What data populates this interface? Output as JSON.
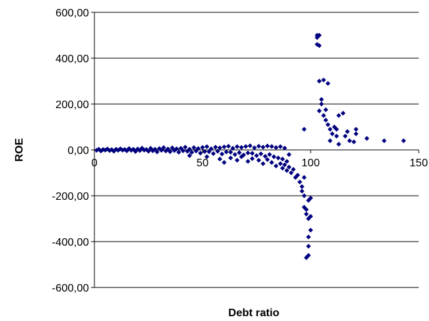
{
  "chart_data": {
    "type": "scatter",
    "title": "",
    "xlabel": "Debt ratio",
    "ylabel": "ROE",
    "xlim": [
      0,
      150
    ],
    "ylim": [
      -600,
      600
    ],
    "x_ticks": [
      0,
      50,
      100,
      150
    ],
    "x_tick_labels": [
      "0",
      "50",
      "100",
      "150"
    ],
    "y_ticks": [
      600,
      400,
      200,
      0,
      -200,
      -400,
      -600
    ],
    "y_tick_labels": [
      "600,00",
      "400,00",
      "200,00",
      "0,00",
      "-200,00",
      "-400,00",
      "-600,00"
    ],
    "grid": "horizontal",
    "marker": "diamond",
    "colors": {
      "marker": "#00007f",
      "axis": "#000000",
      "grid": "#000000"
    },
    "series": [
      {
        "points": [
          [
            1,
            -2
          ],
          [
            2,
            3
          ],
          [
            3,
            -5
          ],
          [
            4,
            2
          ],
          [
            5,
            -1
          ],
          [
            6,
            4
          ],
          [
            7,
            -3
          ],
          [
            8,
            1
          ],
          [
            9,
            -6
          ],
          [
            10,
            3
          ],
          [
            11,
            -2
          ],
          [
            12,
            5
          ],
          [
            13,
            -1
          ],
          [
            14,
            2
          ],
          [
            15,
            -4
          ],
          [
            16,
            6
          ],
          [
            17,
            -2
          ],
          [
            18,
            3
          ],
          [
            19,
            -7
          ],
          [
            20,
            4
          ],
          [
            21,
            -3
          ],
          [
            22,
            8
          ],
          [
            23,
            -1
          ],
          [
            24,
            2
          ],
          [
            25,
            -6
          ],
          [
            26,
            7
          ],
          [
            27,
            -4
          ],
          [
            28,
            3
          ],
          [
            29,
            -9
          ],
          [
            30,
            6
          ],
          [
            31,
            -2
          ],
          [
            32,
            10
          ],
          [
            33,
            -5
          ],
          [
            34,
            4
          ],
          [
            35,
            -8
          ],
          [
            36,
            9
          ],
          [
            37,
            -3
          ],
          [
            38,
            5
          ],
          [
            39,
            -10
          ],
          [
            40,
            7
          ],
          [
            41,
            -4
          ],
          [
            42,
            12
          ],
          [
            43,
            -6
          ],
          [
            44,
            3
          ],
          [
            45,
            -11
          ],
          [
            46,
            10
          ],
          [
            47,
            -5
          ],
          [
            48,
            6
          ],
          [
            49,
            -14
          ],
          [
            50,
            11
          ],
          [
            51,
            -7
          ],
          [
            52,
            14
          ],
          [
            53,
            -8
          ],
          [
            54,
            5
          ],
          [
            55,
            -16
          ],
          [
            56,
            12
          ],
          [
            57,
            -6
          ],
          [
            58,
            9
          ],
          [
            59,
            -18
          ],
          [
            60,
            13
          ],
          [
            61,
            -9
          ],
          [
            62,
            16
          ],
          [
            63,
            -10
          ],
          [
            64,
            7
          ],
          [
            65,
            -20
          ],
          [
            66,
            14
          ],
          [
            67,
            -12
          ],
          [
            68,
            11
          ],
          [
            69,
            -22
          ],
          [
            70,
            15
          ],
          [
            71,
            -13
          ],
          [
            72,
            18
          ],
          [
            73,
            -15
          ],
          [
            74,
            9
          ],
          [
            75,
            -25
          ],
          [
            76,
            16
          ],
          [
            77,
            -17
          ],
          [
            78,
            12
          ],
          [
            79,
            -28
          ],
          [
            80,
            17
          ],
          [
            81,
            -20
          ],
          [
            82,
            15
          ],
          [
            83,
            -30
          ],
          [
            84,
            10
          ],
          [
            85,
            -35
          ],
          [
            86,
            14
          ],
          [
            87,
            -40
          ],
          [
            88,
            8
          ],
          [
            89,
            -50
          ],
          [
            90,
            -20
          ],
          [
            44,
            -25
          ],
          [
            52,
            -30
          ],
          [
            58,
            -40
          ],
          [
            60,
            -55
          ],
          [
            63,
            -35
          ],
          [
            66,
            -45
          ],
          [
            68,
            -30
          ],
          [
            71,
            -50
          ],
          [
            73,
            -38
          ],
          [
            76,
            -45
          ],
          [
            78,
            -60
          ],
          [
            80,
            -42
          ],
          [
            82,
            -55
          ],
          [
            84,
            -70
          ],
          [
            86,
            -60
          ],
          [
            87,
            -80
          ],
          [
            88,
            -65
          ],
          [
            89,
            -90
          ],
          [
            90,
            -75
          ],
          [
            91,
            -100
          ],
          [
            92,
            -85
          ],
          [
            93,
            -120
          ],
          [
            94,
            -110
          ],
          [
            95,
            -140
          ],
          [
            96,
            -160
          ],
          [
            96,
            -180
          ],
          [
            97,
            -200
          ],
          [
            97,
            -250
          ],
          [
            98,
            -260
          ],
          [
            98,
            -280
          ],
          [
            99,
            -300
          ],
          [
            99,
            -220
          ],
          [
            99,
            -380
          ],
          [
            99,
            -420
          ],
          [
            100,
            -290
          ],
          [
            100,
            -350
          ],
          [
            98,
            -470
          ],
          [
            99,
            -460
          ],
          [
            100,
            -210
          ],
          [
            97,
            -120
          ],
          [
            97,
            90
          ],
          [
            103,
            500
          ],
          [
            103,
            490
          ],
          [
            104,
            500
          ],
          [
            103,
            460
          ],
          [
            104,
            455
          ],
          [
            104,
            300
          ],
          [
            106,
            305
          ],
          [
            108,
            290
          ],
          [
            105,
            220
          ],
          [
            105,
            200
          ],
          [
            104,
            170
          ],
          [
            106,
            150
          ],
          [
            107,
            130
          ],
          [
            108,
            110
          ],
          [
            109,
            90
          ],
          [
            110,
            70
          ],
          [
            112,
            60
          ],
          [
            113,
            150
          ],
          [
            115,
            160
          ],
          [
            112,
            90
          ],
          [
            117,
            80
          ],
          [
            116,
            60
          ],
          [
            118,
            40
          ],
          [
            121,
            90
          ],
          [
            121,
            70
          ],
          [
            109,
            40
          ],
          [
            113,
            25
          ],
          [
            120,
            35
          ],
          [
            126,
            50
          ],
          [
            134,
            40
          ],
          [
            143,
            40
          ],
          [
            107,
            175
          ],
          [
            111,
            100
          ]
        ]
      }
    ]
  }
}
